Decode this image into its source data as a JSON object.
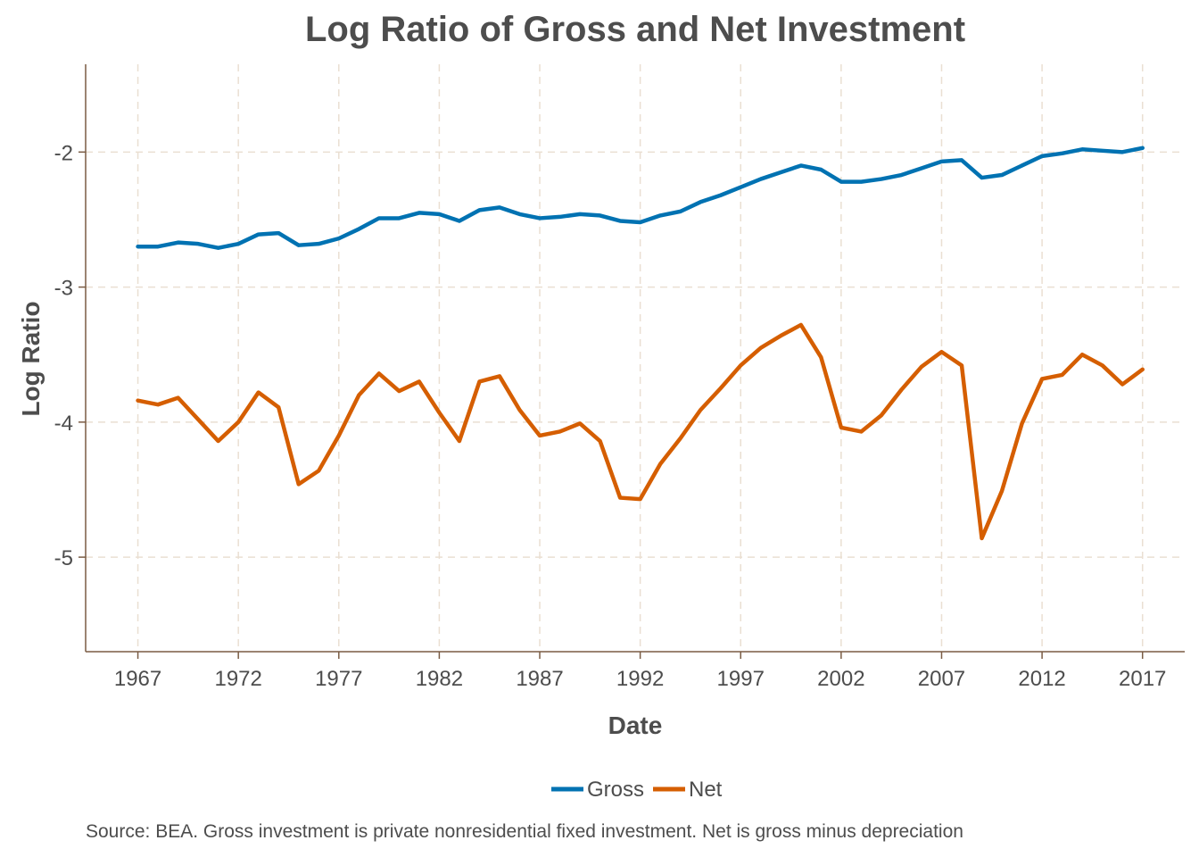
{
  "chart_data": {
    "type": "line",
    "title": "Log Ratio of Gross and Net Investment",
    "xlabel": "Date",
    "ylabel": "Log Ratio",
    "caption": "Source: BEA. Gross investment is private nonresidential fixed investment. Net is gross minus depreciation",
    "xlim": [
      1964.4,
      1969.1
    ],
    "ylim": [
      -5.7,
      -1.35
    ],
    "x_ticks": [
      1967,
      1972,
      1977,
      1982,
      1987,
      1992,
      1997,
      2002,
      2007,
      2012,
      2017
    ],
    "y_ticks": [
      -2,
      -3,
      -4,
      -5
    ],
    "grid": true,
    "legend_position": "bottom",
    "x": [
      1967,
      1968,
      1969,
      1970,
      1971,
      1972,
      1973,
      1974,
      1975,
      1976,
      1977,
      1978,
      1979,
      1980,
      1981,
      1982,
      1983,
      1984,
      1985,
      1986,
      1987,
      1988,
      1989,
      1990,
      1991,
      1992,
      1993,
      1994,
      1995,
      1996,
      1997,
      1998,
      1999,
      2000,
      2001,
      2002,
      2003,
      2004,
      2005,
      2006,
      2007,
      2008,
      2009,
      2010,
      2011,
      2012,
      2013,
      2014,
      2015,
      2016,
      2017
    ],
    "series": [
      {
        "name": "Gross",
        "color": "#0072b2",
        "values": [
          -2.7,
          -2.7,
          -2.67,
          -2.68,
          -2.71,
          -2.68,
          -2.61,
          -2.6,
          -2.69,
          -2.68,
          -2.64,
          -2.57,
          -2.49,
          -2.49,
          -2.45,
          -2.46,
          -2.51,
          -2.43,
          -2.41,
          -2.46,
          -2.49,
          -2.48,
          -2.46,
          -2.47,
          -2.51,
          -2.52,
          -2.47,
          -2.44,
          -2.37,
          -2.32,
          -2.26,
          -2.2,
          -2.15,
          -2.1,
          -2.13,
          -2.22,
          -2.22,
          -2.2,
          -2.17,
          -2.12,
          -2.07,
          -2.06,
          -2.19,
          -2.17,
          -2.1,
          -2.03,
          -2.01,
          -1.98,
          -1.99,
          -2.0,
          -1.97
        ]
      },
      {
        "name": "Net",
        "color": "#d55e00",
        "values": [
          -3.84,
          -3.87,
          -3.82,
          -3.98,
          -4.14,
          -4.0,
          -3.78,
          -3.89,
          -4.46,
          -4.36,
          -4.1,
          -3.8,
          -3.64,
          -3.77,
          -3.7,
          -3.93,
          -4.14,
          -3.7,
          -3.66,
          -3.91,
          -4.1,
          -4.07,
          -4.01,
          -4.14,
          -4.56,
          -4.57,
          -4.31,
          -4.12,
          -3.91,
          -3.75,
          -3.58,
          -3.45,
          -3.36,
          -3.28,
          -3.52,
          -4.04,
          -4.07,
          -3.95,
          -3.76,
          -3.59,
          -3.48,
          -3.58,
          -4.86,
          -4.51,
          -4.01,
          -3.68,
          -3.65,
          -3.5,
          -3.58,
          -3.72,
          -3.61
        ]
      }
    ]
  }
}
